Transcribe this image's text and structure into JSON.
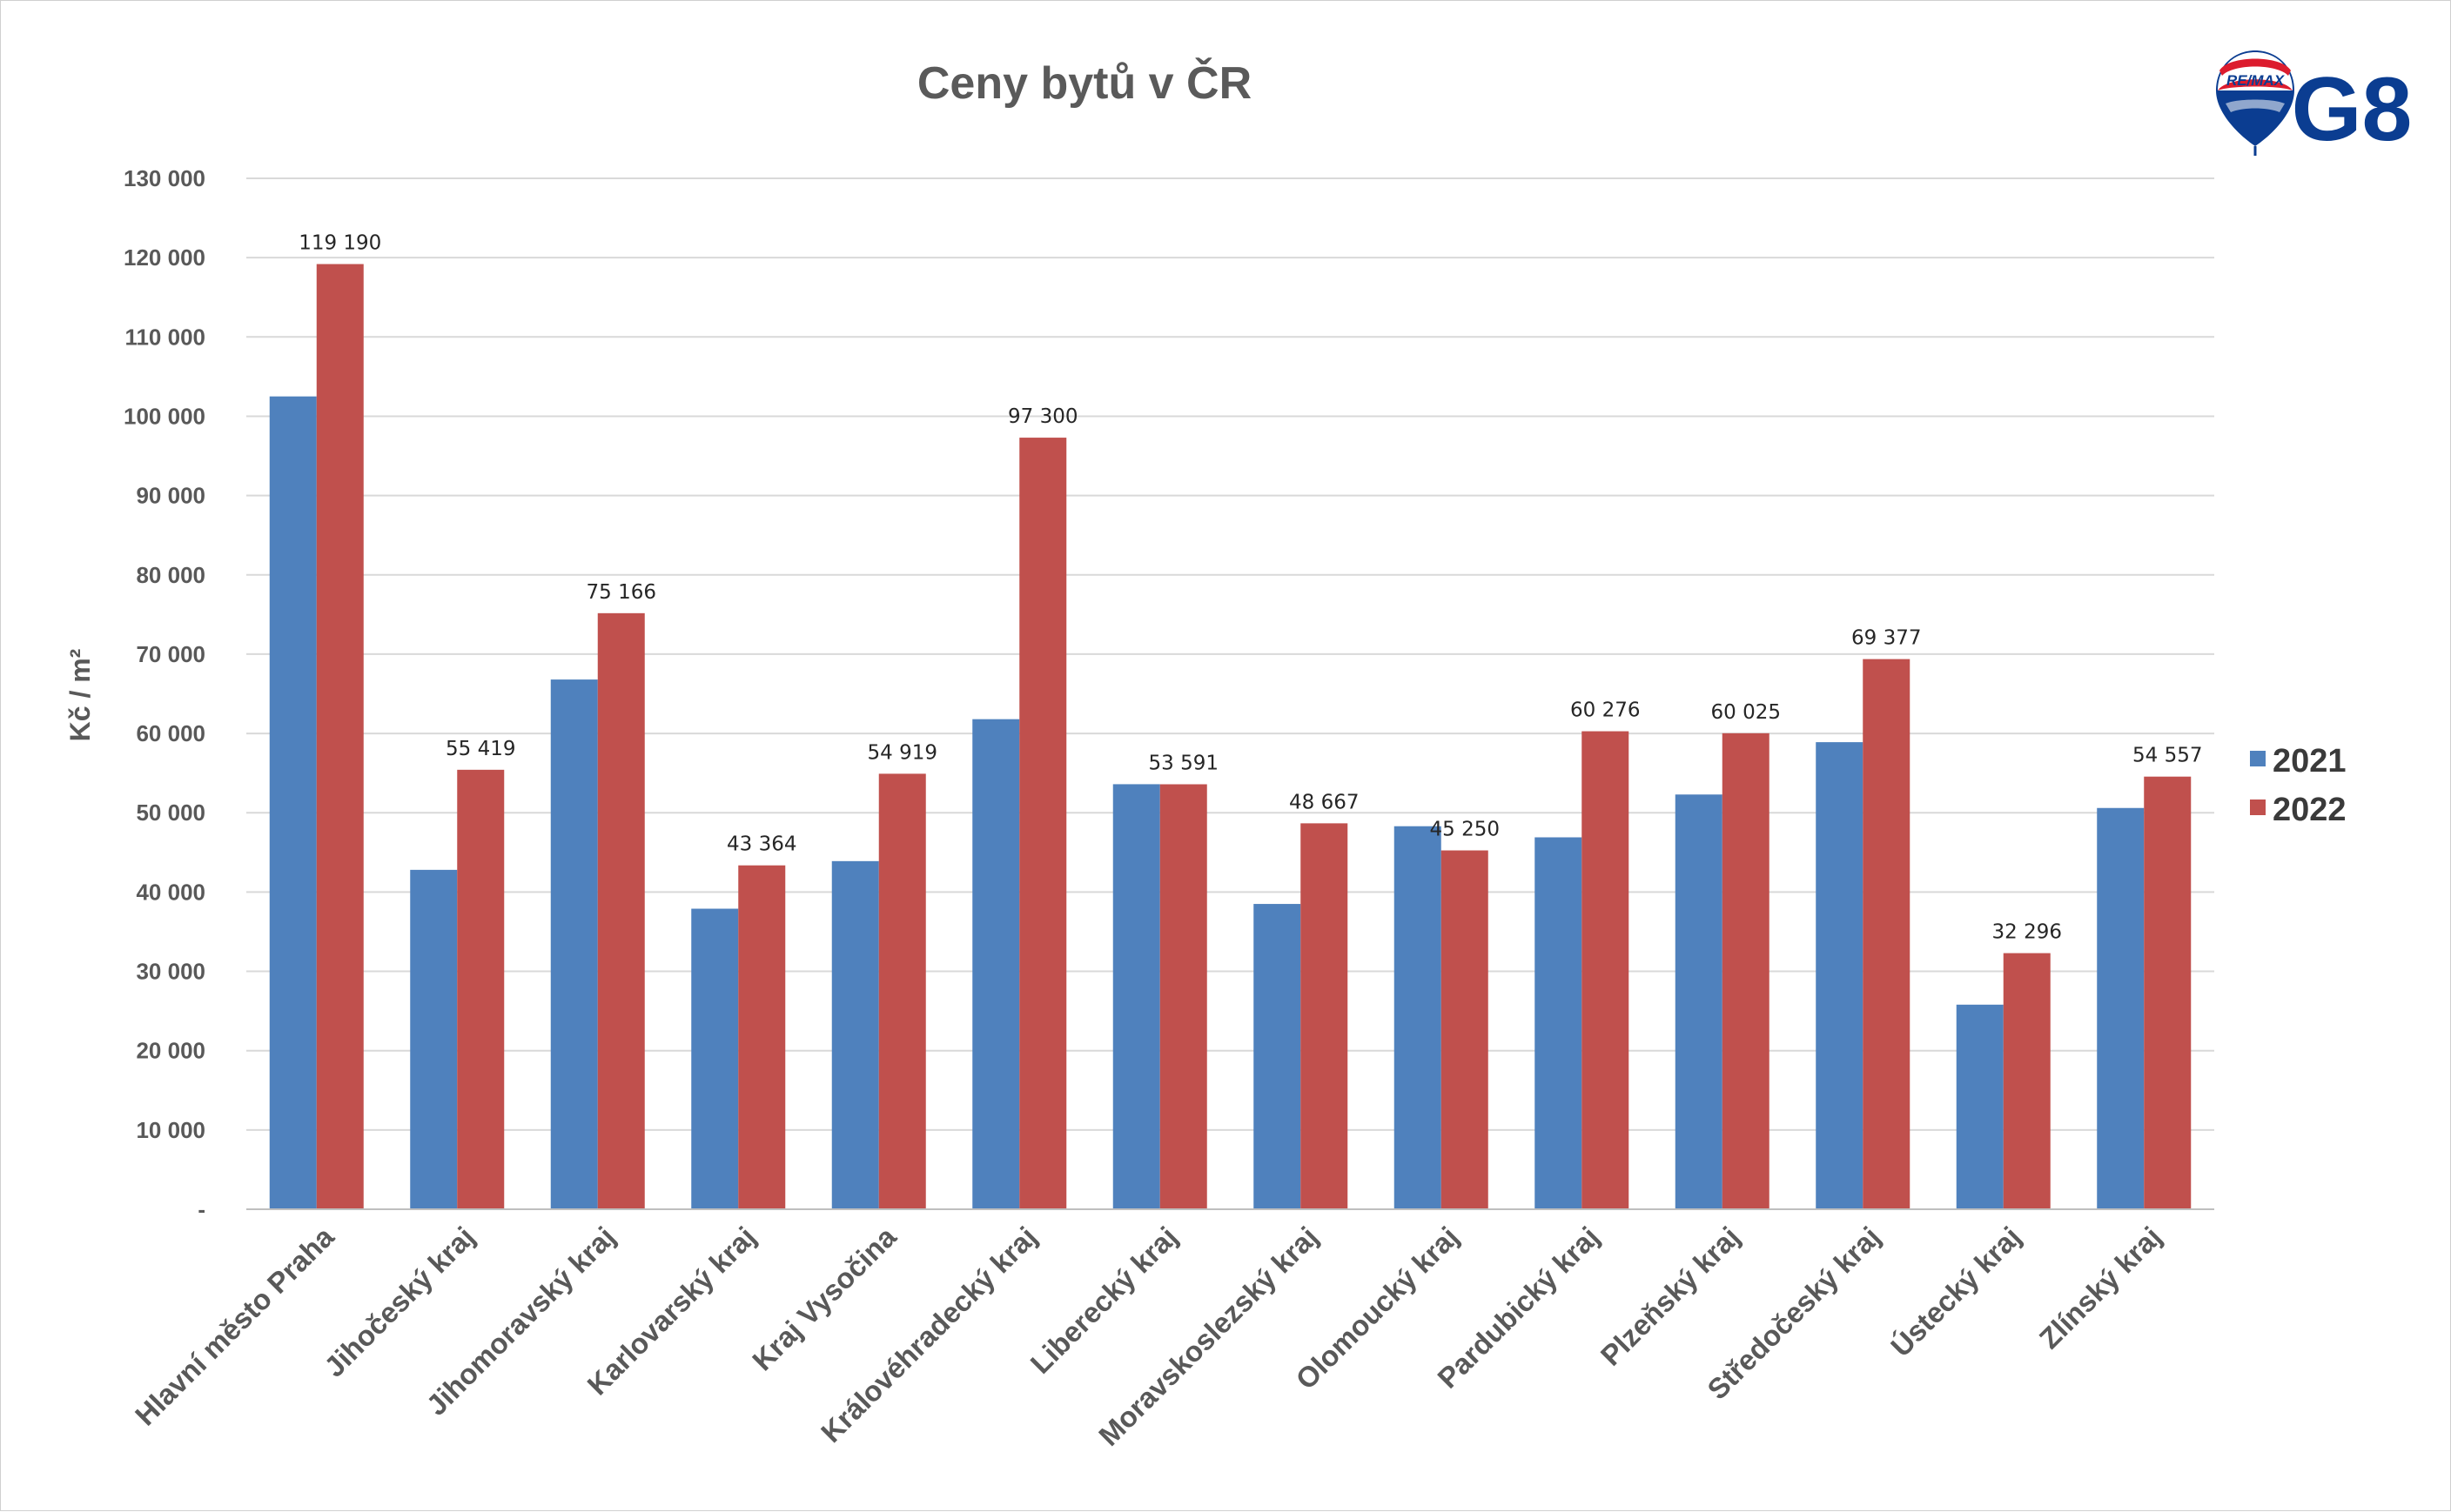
{
  "chart_data": {
    "type": "bar",
    "title": "Ceny bytů v ČR",
    "ylabel": "Kč / m²",
    "xlabel": "",
    "ylim": [
      0,
      130000
    ],
    "yticks": [
      {
        "value": 0,
        "label": "-"
      },
      {
        "value": 10000,
        "label": "10 000"
      },
      {
        "value": 20000,
        "label": "20 000"
      },
      {
        "value": 30000,
        "label": "30 000"
      },
      {
        "value": 40000,
        "label": "40 000"
      },
      {
        "value": 50000,
        "label": "50 000"
      },
      {
        "value": 60000,
        "label": "60 000"
      },
      {
        "value": 70000,
        "label": "70 000"
      },
      {
        "value": 80000,
        "label": "80 000"
      },
      {
        "value": 90000,
        "label": "90 000"
      },
      {
        "value": 100000,
        "label": "100 000"
      },
      {
        "value": 110000,
        "label": "110 000"
      },
      {
        "value": 120000,
        "label": "120 000"
      },
      {
        "value": 130000,
        "label": "130 000"
      }
    ],
    "grid": true,
    "legend_position": "right",
    "categories": [
      "Hlavní město Praha",
      "Jihočeský kraj",
      "Jihomoravský kraj",
      "Karlovarský kraj",
      "Kraj Vysočina",
      "Královéhradecký kraj",
      "Liberecký kraj",
      "Moravskoslezský kraj",
      "Olomoucký kraj",
      "Pardubický kraj",
      "Plzeňský kraj",
      "Středočeský kraj",
      "Ústecký kraj",
      "Zlínský kraj"
    ],
    "series": [
      {
        "name": "2021",
        "color": "#4f81bd",
        "values": [
          102500,
          42800,
          66800,
          37900,
          43900,
          61800,
          53600,
          38500,
          48300,
          46900,
          52300,
          58900,
          25800,
          50600
        ]
      },
      {
        "name": "2022",
        "color": "#c0504d",
        "values": [
          119190,
          55419,
          75166,
          43364,
          54919,
          97300,
          53591,
          48667,
          45250,
          60276,
          60025,
          69377,
          32296,
          54557
        ],
        "labels": [
          "119 190",
          "55 419",
          "75 166",
          "43 364",
          "54 919",
          "97 300",
          "53 591",
          "48 667",
          "45 250",
          "60 276",
          "60 025",
          "69 377",
          "32 296",
          "54 557"
        ]
      }
    ]
  },
  "logo": {
    "brand_text": "RE/MAX",
    "office_text": "G8",
    "brand_color": "#0b3d91",
    "accent_color": "#dc1c2e"
  }
}
